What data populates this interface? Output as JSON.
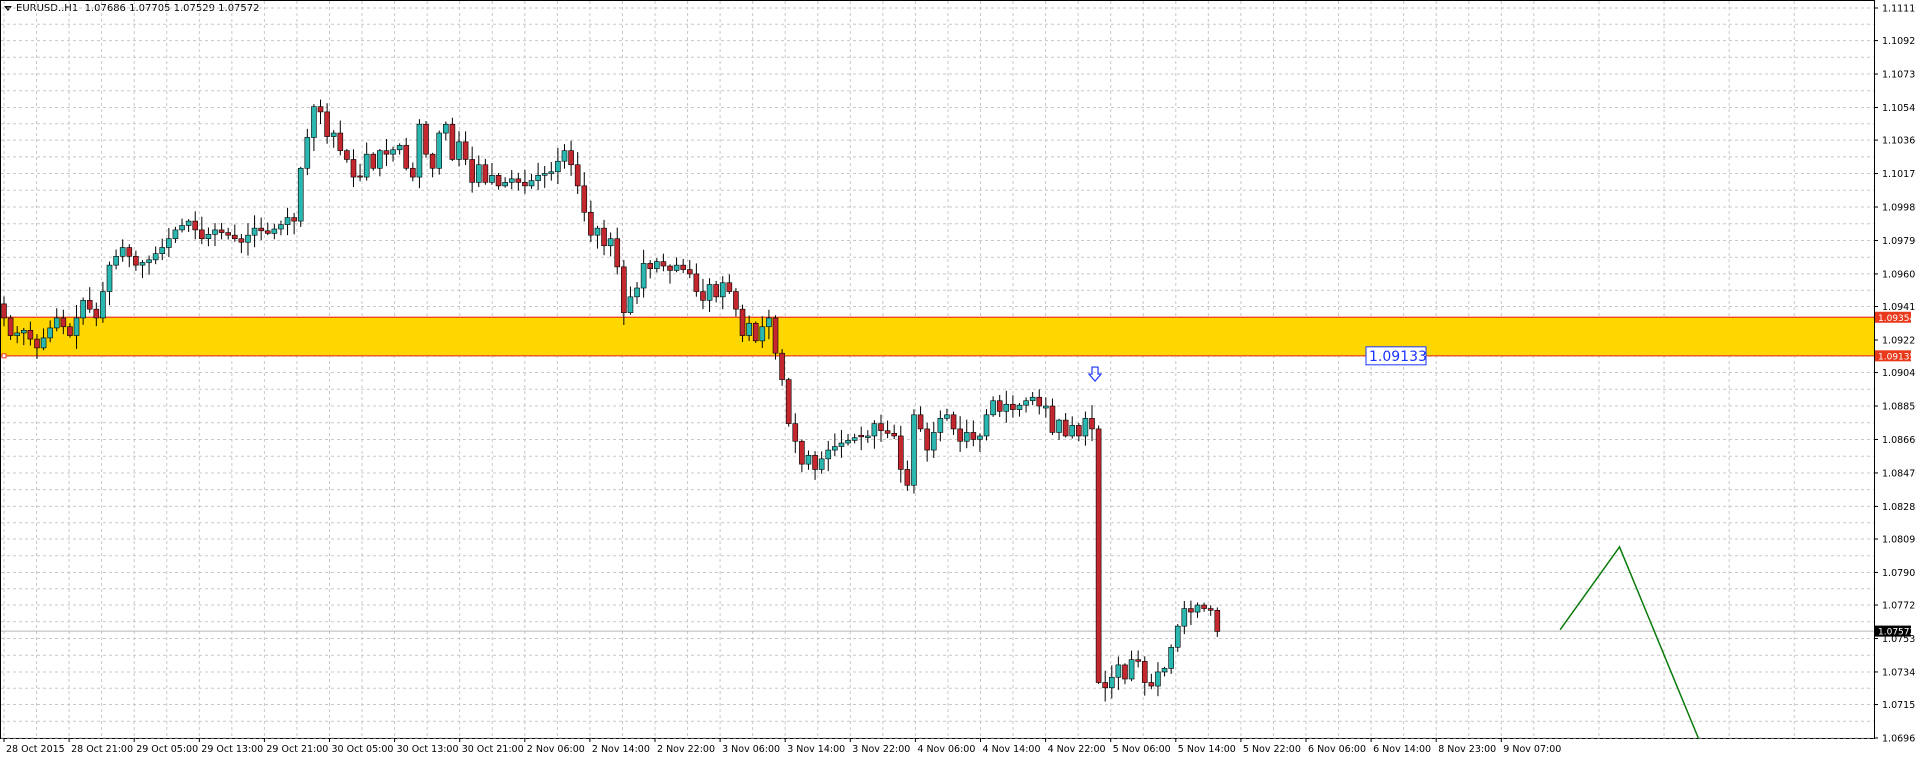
{
  "header": {
    "symbol": "EURUSD..H1",
    "ohlc": "1.07686 1.07705 1.07529 1.07572"
  },
  "colors": {
    "bull": "#2ab7b0",
    "bear": "#c4282e",
    "wick": "#000000",
    "grid": "#c8c8c8",
    "zone_fill": "#ffd700",
    "zone_border": "#e8391b",
    "projection": "#0a7a0a",
    "price_label_bg": "#000000",
    "level_label_bg": "#e8391b",
    "annotation": "#1a33ff"
  },
  "chart_data": {
    "type": "candlestick",
    "x_ticks": [
      "28 Oct 2015",
      "28 Oct 21:00",
      "29 Oct 05:00",
      "29 Oct 13:00",
      "29 Oct 21:00",
      "30 Oct 05:00",
      "30 Oct 13:00",
      "30 Oct 21:00",
      "2 Nov 06:00",
      "2 Nov 14:00",
      "2 Nov 22:00",
      "3 Nov 06:00",
      "3 Nov 14:00",
      "3 Nov 22:00",
      "4 Nov 06:00",
      "4 Nov 14:00",
      "4 Nov 22:00",
      "5 Nov 06:00",
      "5 Nov 14:00",
      "5 Nov 22:00",
      "6 Nov 06:00",
      "6 Nov 14:00",
      "8 Nov 23:00",
      "9 Nov 07:00"
    ],
    "y_ticks": [
      "1.11110",
      "1.10925",
      "1.10735",
      "1.10545",
      "1.10360",
      "1.10170",
      "1.09980",
      "1.09790",
      "1.09600",
      "1.09415",
      "1.09225",
      "1.09040",
      "1.08850",
      "1.08660",
      "1.08470",
      "1.08280",
      "1.08095",
      "1.07905",
      "1.07720",
      "1.07530",
      "1.07340",
      "1.07155",
      "1.06965"
    ],
    "ylim": [
      1.06965,
      1.1111
    ],
    "grid": true,
    "current_price": "1.07572",
    "zone": {
      "upper": "1.09354",
      "lower": "1.09135"
    },
    "level_annotation": "1.09133",
    "projection": [
      {
        "bar": 236,
        "price": 1.0758
      },
      {
        "bar": 245,
        "price": 1.0805
      },
      {
        "bar": 257,
        "price": 1.0696
      }
    ],
    "arrow_marker": {
      "bar": 165,
      "price": 1.0902
    },
    "waypoints": [
      [
        0,
        1.0935
      ],
      [
        1,
        1.0925
      ],
      [
        3,
        1.0928
      ],
      [
        5,
        1.0918
      ],
      [
        8,
        1.0935
      ],
      [
        10,
        1.0925
      ],
      [
        12,
        1.0945
      ],
      [
        14,
        1.0935
      ],
      [
        16,
        1.0965
      ],
      [
        18,
        1.0975
      ],
      [
        20,
        1.0965
      ],
      [
        22,
        1.0968
      ],
      [
        24,
        1.0975
      ],
      [
        26,
        1.0985
      ],
      [
        28,
        1.099
      ],
      [
        30,
        1.098
      ],
      [
        32,
        1.0985
      ],
      [
        34,
        1.0982
      ],
      [
        36,
        1.0978
      ],
      [
        38,
        1.0986
      ],
      [
        40,
        1.0983
      ],
      [
        42,
        1.0988
      ],
      [
        43,
        1.0992
      ],
      [
        44,
        1.099
      ],
      [
        45,
        1.102
      ],
      [
        47,
        1.1055
      ],
      [
        48,
        1.1052
      ],
      [
        49,
        1.1038
      ],
      [
        50,
        1.104
      ],
      [
        51,
        1.103
      ],
      [
        52,
        1.1025
      ],
      [
        53,
        1.1015
      ],
      [
        54,
        1.1015
      ],
      [
        55,
        1.1028
      ],
      [
        56,
        1.102
      ],
      [
        57,
        1.103
      ],
      [
        58,
        1.1028
      ],
      [
        60,
        1.1033
      ],
      [
        61,
        1.102
      ],
      [
        62,
        1.1015
      ],
      [
        63,
        1.1045
      ],
      [
        64,
        1.1028
      ],
      [
        65,
        1.102
      ],
      [
        66,
        1.104
      ],
      [
        67,
        1.1045
      ],
      [
        68,
        1.1025
      ],
      [
        69,
        1.1035
      ],
      [
        70,
        1.1025
      ],
      [
        71,
        1.1012
      ],
      [
        72,
        1.1022
      ],
      [
        73,
        1.1012
      ],
      [
        74,
        1.1016
      ],
      [
        75,
        1.101
      ],
      [
        77,
        1.1014
      ],
      [
        79,
        1.101
      ],
      [
        81,
        1.1016
      ],
      [
        83,
        1.1018
      ],
      [
        85,
        1.103
      ],
      [
        86,
        1.1022
      ],
      [
        87,
        1.101
      ],
      [
        88,
        1.0995
      ],
      [
        89,
        1.0982
      ],
      [
        90,
        1.0986
      ],
      [
        91,
        1.0976
      ],
      [
        92,
        1.098
      ],
      [
        93,
        1.0964
      ],
      [
        94,
        1.0938
      ],
      [
        95,
        1.0947
      ],
      [
        96,
        1.0952
      ],
      [
        97,
        1.0966
      ],
      [
        98,
        1.0963
      ],
      [
        99,
        1.0967
      ],
      [
        101,
        1.0962
      ],
      [
        102,
        1.0965
      ],
      [
        104,
        1.096
      ],
      [
        105,
        1.095
      ],
      [
        106,
        1.0945
      ],
      [
        107,
        1.0954
      ],
      [
        108,
        1.0947
      ],
      [
        109,
        1.0955
      ],
      [
        110,
        1.095
      ],
      [
        111,
        1.094
      ],
      [
        112,
        1.0925
      ],
      [
        113,
        1.0932
      ],
      [
        114,
        1.0922
      ],
      [
        115,
        1.093
      ],
      [
        116,
        1.0935
      ],
      [
        117,
        1.0915
      ],
      [
        118,
        1.09
      ],
      [
        119,
        1.0875
      ],
      [
        120,
        1.0865
      ],
      [
        121,
        1.0852
      ],
      [
        122,
        1.0857
      ],
      [
        123,
        1.0849
      ],
      [
        124,
        1.0855
      ],
      [
        125,
        1.086
      ],
      [
        127,
        1.0864
      ],
      [
        129,
        1.0867
      ],
      [
        131,
        1.0868
      ],
      [
        132,
        1.0875
      ],
      [
        133,
        1.0871
      ],
      [
        135,
        1.0868
      ],
      [
        136,
        1.0849
      ],
      [
        137,
        1.084
      ],
      [
        138,
        1.088
      ],
      [
        139,
        1.0872
      ],
      [
        140,
        1.086
      ],
      [
        141,
        1.087
      ],
      [
        142,
        1.0878
      ],
      [
        143,
        1.088
      ],
      [
        144,
        1.0872
      ],
      [
        145,
        1.0865
      ],
      [
        146,
        1.087
      ],
      [
        147,
        1.0866
      ],
      [
        148,
        1.0868
      ],
      [
        149,
        1.088
      ],
      [
        150,
        1.0888
      ],
      [
        151,
        1.0882
      ],
      [
        152,
        1.0886
      ],
      [
        153,
        1.0883
      ],
      [
        155,
        1.0888
      ],
      [
        156,
        1.089
      ],
      [
        157,
        1.0885
      ],
      [
        158,
        1.0885
      ],
      [
        159,
        1.087
      ],
      [
        160,
        1.0877
      ],
      [
        161,
        1.0868
      ],
      [
        162,
        1.0874
      ],
      [
        163,
        1.0868
      ],
      [
        164,
        1.0878
      ],
      [
        165,
        1.0872
      ],
      [
        166,
        1.0728
      ],
      [
        167,
        1.0725
      ],
      [
        168,
        1.0731
      ],
      [
        169,
        1.0738
      ],
      [
        170,
        1.073
      ],
      [
        171,
        1.0741
      ],
      [
        172,
        1.074
      ],
      [
        173,
        1.0728
      ],
      [
        174,
        1.0726
      ],
      [
        175,
        1.0734
      ],
      [
        176,
        1.0736
      ],
      [
        177,
        1.0748
      ],
      [
        178,
        1.076
      ],
      [
        179,
        1.077
      ],
      [
        180,
        1.0768
      ],
      [
        181,
        1.0772
      ],
      [
        182,
        1.077
      ],
      [
        183,
        1.0769
      ],
      [
        184,
        1.0757
      ]
    ]
  }
}
